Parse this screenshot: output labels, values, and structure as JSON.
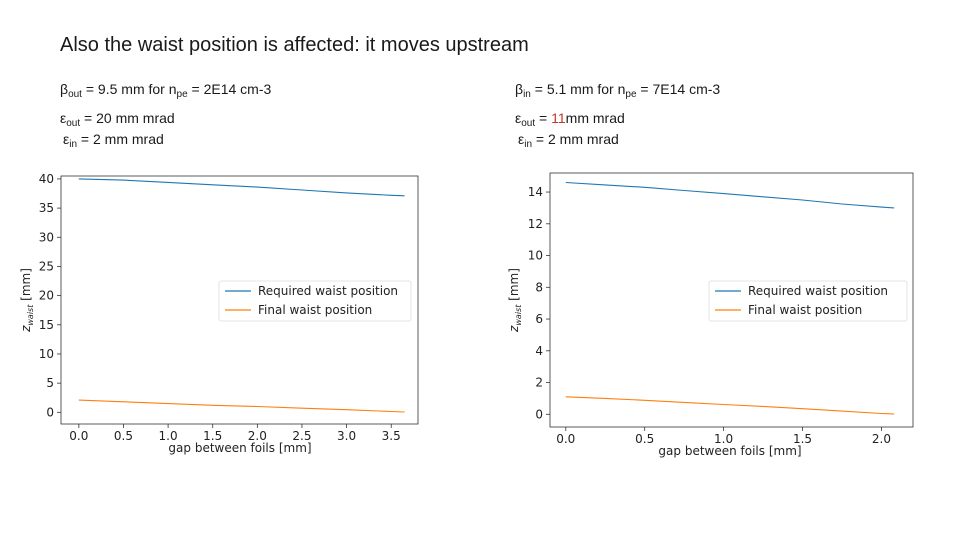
{
  "slide": {
    "title": "Also the waist position is affected: it moves upstream",
    "left": {
      "beta_symbol": "β",
      "beta_sub": "out",
      "beta_text": " = 9.5 mm for n",
      "n_sub": "pe",
      "n_text": " = 2E14 cm-3",
      "eps_out_symbol": "ε",
      "eps_out_sub": "out",
      "eps_out_text": " = 20 mm mrad",
      "eps_in_symbol": "ε",
      "eps_in_sub": "in",
      "eps_in_text": " = 2 mm mrad"
    },
    "right": {
      "beta_symbol": "β",
      "beta_sub": "in",
      "beta_text": " = 5.1 mm for n",
      "n_sub": "pe",
      "n_text": " = 7E14 cm-3",
      "eps_out_symbol": "ε",
      "eps_out_sub": "out",
      "eps_out_pre": " = ",
      "eps_out_highlight": "11",
      "eps_out_text": "mm mrad",
      "eps_in_symbol": "ε",
      "eps_in_sub": "in",
      "eps_in_text": " = 2 mm mrad"
    }
  },
  "colors": {
    "required": "#1f77b4",
    "final": "#ff7f0e",
    "highlight": "#c0392b"
  },
  "chart_data": [
    {
      "type": "line",
      "title": "",
      "xlabel": "gap between foils [mm]",
      "ylabel_base": "z",
      "ylabel_sub": "waist",
      "ylabel_unit": " [mm]",
      "xlim": [
        -0.2,
        3.8
      ],
      "ylim": [
        -2,
        40.5
      ],
      "xticks": [
        0.0,
        0.5,
        1.0,
        1.5,
        2.0,
        2.5,
        3.0,
        3.5
      ],
      "xtick_labels": [
        "0.0",
        "0.5",
        "1.0",
        "1.5",
        "2.0",
        "2.5",
        "3.0",
        "3.5"
      ],
      "yticks": [
        0,
        5,
        10,
        15,
        20,
        25,
        30,
        35,
        40
      ],
      "ytick_labels": [
        "0",
        "5",
        "10",
        "15",
        "20",
        "25",
        "30",
        "35",
        "40"
      ],
      "legend_position": "center-right",
      "grid": false,
      "series": [
        {
          "name": "Required waist position",
          "color": "#1f77b4",
          "x": [
            0.0,
            0.5,
            1.0,
            1.5,
            2.0,
            2.5,
            3.0,
            3.5,
            3.65
          ],
          "y": [
            40.0,
            39.8,
            39.4,
            39.0,
            38.6,
            38.1,
            37.6,
            37.2,
            37.1
          ]
        },
        {
          "name": "Final waist position",
          "color": "#ff7f0e",
          "x": [
            0.0,
            0.5,
            1.0,
            1.5,
            2.0,
            2.5,
            3.0,
            3.5,
            3.65
          ],
          "y": [
            2.1,
            1.8,
            1.5,
            1.2,
            1.0,
            0.7,
            0.45,
            0.15,
            0.05
          ]
        }
      ]
    },
    {
      "type": "line",
      "title": "",
      "xlabel": "gap between foils [mm]",
      "ylabel_base": "z",
      "ylabel_sub": "waist",
      "ylabel_unit": " [mm]",
      "xlim": [
        -0.1,
        2.2
      ],
      "ylim": [
        -0.8,
        15.2
      ],
      "xticks": [
        0.0,
        0.5,
        1.0,
        1.5,
        2.0
      ],
      "xtick_labels": [
        "0.0",
        "0.5",
        "1.0",
        "1.5",
        "2.0"
      ],
      "yticks": [
        0,
        2,
        4,
        6,
        8,
        10,
        12,
        14
      ],
      "ytick_labels": [
        "0",
        "2",
        "4",
        "6",
        "8",
        "10",
        "12",
        "14"
      ],
      "legend_position": "center-right",
      "grid": false,
      "series": [
        {
          "name": "Required waist position",
          "color": "#1f77b4",
          "x": [
            0.0,
            0.25,
            0.5,
            0.75,
            1.0,
            1.25,
            1.5,
            1.75,
            2.0,
            2.08
          ],
          "y": [
            14.6,
            14.45,
            14.3,
            14.1,
            13.9,
            13.7,
            13.5,
            13.25,
            13.05,
            13.0
          ]
        },
        {
          "name": "Final waist position",
          "color": "#ff7f0e",
          "x": [
            0.0,
            0.25,
            0.5,
            0.75,
            1.0,
            1.25,
            1.5,
            1.75,
            2.0,
            2.08
          ],
          "y": [
            1.1,
            1.0,
            0.88,
            0.75,
            0.62,
            0.5,
            0.35,
            0.2,
            0.05,
            0.02
          ]
        }
      ]
    }
  ]
}
